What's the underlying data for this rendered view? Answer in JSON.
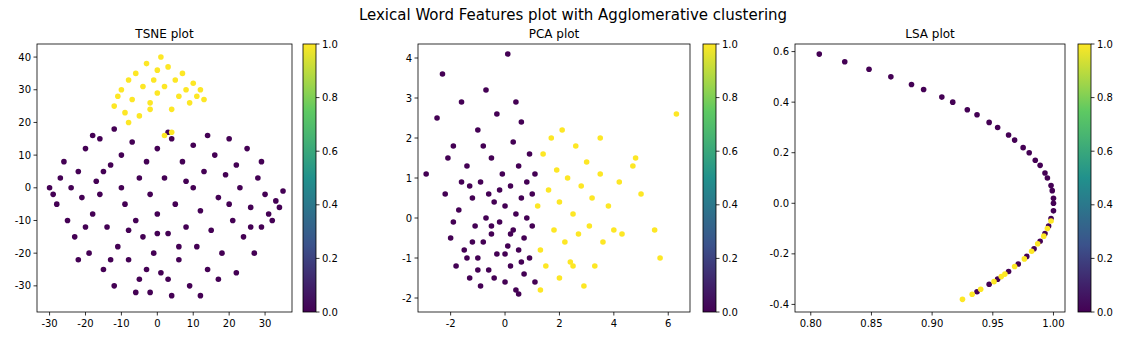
{
  "title": "Lexical Word Features plot with Agglomerative clustering",
  "chart_data": [
    {
      "type": "scatter",
      "title": "TSNE plot",
      "x": [
        -30,
        -28,
        -27,
        -25,
        -26,
        -23,
        -22,
        -21,
        -20,
        -19,
        -18,
        -17,
        -16,
        -15,
        -14,
        -13,
        -12,
        -11,
        -10,
        -10,
        -9,
        -8,
        -7,
        -6,
        -5,
        -5,
        -4,
        -3,
        -2,
        -2,
        -1,
        0,
        0,
        1,
        2,
        3,
        4,
        4,
        5,
        6,
        7,
        8,
        9,
        10,
        10,
        11,
        12,
        13,
        14,
        15,
        16,
        17,
        18,
        19,
        20,
        21,
        22,
        22,
        23,
        24,
        25,
        26,
        27,
        28,
        29,
        30,
        31,
        33,
        34,
        35,
        -29,
        -24,
        -20,
        -15,
        -8,
        -3,
        3,
        8,
        12,
        17,
        20,
        26,
        -12,
        -18,
        6,
        0,
        -6,
        14,
        29,
        32,
        -22,
        -13,
        -16,
        3,
        -12,
        -11,
        -10,
        -9,
        -8,
        -7,
        -6,
        -5,
        -4,
        -3,
        -2,
        -1,
        0,
        0,
        1,
        2,
        3,
        4,
        5,
        6,
        7,
        8,
        9,
        10,
        11,
        12,
        13,
        -8,
        -2,
        2,
        4
      ],
      "values": [
        0,
        -5,
        3,
        -10,
        8,
        -15,
        5,
        -3,
        12,
        -20,
        -8,
        2,
        15,
        -25,
        -12,
        7,
        -30,
        -18,
        0,
        10,
        -5,
        -22,
        14,
        -10,
        -28,
        3,
        -15,
        8,
        -32,
        -2,
        -20,
        12,
        -8,
        -26,
        3,
        -14,
        -33,
        15,
        -5,
        -22,
        8,
        -12,
        -30,
        0,
        13,
        -18,
        -7,
        5,
        -25,
        -13,
        10,
        -3,
        -20,
        4,
        15,
        -10,
        -26,
        7,
        0,
        -15,
        12,
        -6,
        -20,
        3,
        -12,
        -2,
        -8,
        -4,
        -6,
        -1,
        -2,
        0,
        -12,
        5,
        -13,
        -25,
        -28,
        2,
        -33,
        -28,
        -5,
        -12,
        18,
        16,
        -18,
        -14,
        -32,
        16,
        8,
        -10,
        -22,
        -22,
        -2,
        17,
        25,
        28,
        30,
        23,
        33,
        27,
        35,
        22,
        31,
        38,
        26,
        33,
        36,
        29,
        40,
        31,
        37,
        24,
        33,
        28,
        35,
        30,
        26,
        32,
        28,
        30,
        27,
        20,
        24,
        16,
        17
      ],
      "cluster": [
        0,
        0,
        0,
        0,
        0,
        0,
        0,
        0,
        0,
        0,
        0,
        0,
        0,
        0,
        0,
        0,
        0,
        0,
        0,
        0,
        0,
        0,
        0,
        0,
        0,
        0,
        0,
        0,
        0,
        0,
        0,
        0,
        0,
        0,
        0,
        0,
        0,
        0,
        0,
        0,
        0,
        0,
        0,
        0,
        0,
        0,
        0,
        0,
        0,
        0,
        0,
        0,
        0,
        0,
        0,
        0,
        0,
        0,
        0,
        0,
        0,
        0,
        0,
        0,
        0,
        0,
        0,
        0,
        0,
        0,
        0,
        0,
        0,
        0,
        0,
        0,
        0,
        0,
        0,
        0,
        0,
        0,
        0,
        0,
        0,
        0,
        0,
        0,
        0,
        0,
        0,
        0,
        0,
        0,
        1,
        1,
        1,
        1,
        1,
        1,
        1,
        1,
        1,
        1,
        1,
        1,
        1,
        1,
        1,
        1,
        1,
        1,
        1,
        1,
        1,
        1,
        1,
        1,
        1,
        1,
        1,
        1,
        1,
        1,
        1
      ],
      "xlim": [
        -33.5,
        37.5
      ],
      "ylim": [
        -38,
        44
      ],
      "xticks": [
        -30,
        -20,
        -10,
        0,
        10,
        20,
        30
      ],
      "yticks": [
        -30,
        -20,
        -10,
        0,
        10,
        20,
        30,
        40
      ],
      "colorbar": {
        "range": [
          0,
          1
        ],
        "ticks": [
          {
            "value": 0,
            "label": "0.0"
          },
          0.2,
          0.4,
          0.6,
          0.8,
          {
            "value": 1,
            "label": "1.0"
          }
        ]
      }
    },
    {
      "type": "scatter",
      "title": "PCA plot",
      "x": [
        -2.9,
        -2.5,
        -2.3,
        -2.2,
        -2.0,
        -1.9,
        -1.8,
        -1.7,
        -1.6,
        -1.5,
        -1.4,
        -1.3,
        -1.2,
        -1.1,
        -1.0,
        -1.0,
        -0.9,
        -0.8,
        -0.7,
        -0.7,
        -0.6,
        -0.5,
        -0.5,
        -0.4,
        -0.3,
        -0.3,
        -0.2,
        -0.1,
        0.0,
        0.0,
        0.1,
        0.1,
        0.2,
        0.2,
        0.3,
        0.3,
        0.4,
        0.4,
        0.5,
        0.5,
        0.6,
        0.6,
        0.7,
        0.7,
        0.8,
        0.8,
        0.9,
        0.9,
        1.0,
        1.0,
        1.1,
        1.1,
        -1.9,
        -1.3,
        -0.9,
        -0.4,
        0.2,
        -0.6,
        -1.2,
        -0.2,
        0.5,
        -2.1,
        -1.6,
        -0.8,
        0.4,
        -1.0,
        0.0,
        -0.5,
        0.6,
        -1.4,
        1.2,
        1.3,
        1.4,
        1.5,
        1.6,
        1.7,
        1.8,
        1.9,
        2.0,
        2.0,
        2.1,
        2.2,
        2.3,
        2.4,
        2.5,
        2.6,
        2.7,
        2.8,
        2.9,
        3.0,
        3.1,
        3.2,
        3.3,
        3.5,
        3.6,
        3.8,
        4.0,
        4.2,
        4.3,
        4.7,
        4.8,
        5.0,
        5.5,
        5.7,
        6.3,
        1.3,
        2.5,
        3.5
      ],
      "values": [
        1.1,
        2.5,
        3.6,
        0.6,
        -0.5,
        1.8,
        -1.2,
        0.2,
        2.9,
        -0.8,
        1.3,
        -1.5,
        0.5,
        -0.2,
        2.2,
        -1.0,
        0.9,
        -0.6,
        3.2,
        0.0,
        -1.3,
        1.5,
        -0.4,
        0.4,
        -0.9,
        2.6,
        -0.1,
        1.1,
        -1.6,
        0.3,
        4.1,
        -0.7,
        0.8,
        -1.2,
        1.9,
        -0.3,
        0.1,
        -1.8,
        1.3,
        -0.8,
        0.5,
        2.4,
        -0.5,
        -1.4,
        0.9,
        0.0,
        -1.0,
        1.6,
        -0.2,
        0.6,
        -1.6,
        1.1,
        -0.1,
        0.8,
        -1.7,
        -1.5,
        -0.4,
        0.6,
        -0.6,
        0.7,
        -1.9,
        1.5,
        0.9,
        1.8,
        2.9,
        -1.3,
        -0.9,
        -0.2,
        -1.1,
        -1.0,
        0.3,
        -0.8,
        1.6,
        -1.2,
        0.7,
        2.0,
        -0.3,
        1.2,
        -1.5,
        0.4,
        2.2,
        -0.6,
        1.0,
        -1.1,
        0.1,
        1.8,
        -0.4,
        0.8,
        -1.7,
        1.4,
        -0.2,
        0.5,
        -1.2,
        1.1,
        -0.6,
        0.3,
        -0.3,
        0.9,
        -0.4,
        1.3,
        1.5,
        0.6,
        -0.3,
        -1.0,
        2.6,
        -1.8,
        -1.2,
        2.0
      ],
      "cluster": [
        0,
        0,
        0,
        0,
        0,
        0,
        0,
        0,
        0,
        0,
        0,
        0,
        0,
        0,
        0,
        0,
        0,
        0,
        0,
        0,
        0,
        0,
        0,
        0,
        0,
        0,
        0,
        0,
        0,
        0,
        0,
        0,
        0,
        0,
        0,
        0,
        0,
        0,
        0,
        0,
        0,
        0,
        0,
        0,
        0,
        0,
        0,
        0,
        0,
        0,
        0,
        0,
        0,
        0,
        0,
        0,
        0,
        0,
        0,
        0,
        0,
        0,
        0,
        0,
        0,
        0,
        0,
        0,
        0,
        0,
        1,
        1,
        1,
        1,
        1,
        1,
        1,
        1,
        1,
        1,
        1,
        1,
        1,
        1,
        1,
        1,
        1,
        1,
        1,
        1,
        1,
        1,
        1,
        1,
        1,
        1,
        1,
        1,
        1,
        1,
        1,
        1,
        1,
        1,
        1,
        1,
        1,
        1
      ],
      "xlim": [
        -3.2,
        6.8
      ],
      "ylim": [
        -2.35,
        4.35
      ],
      "xticks": [
        -2,
        0,
        2,
        4,
        6
      ],
      "yticks": [
        -2,
        -1,
        0,
        1,
        2,
        3,
        4
      ],
      "colorbar": {
        "range": [
          0,
          1
        ],
        "ticks": [
          {
            "value": 0,
            "label": "0.0"
          },
          0.2,
          0.4,
          0.6,
          0.8,
          {
            "value": 1,
            "label": "1.0"
          }
        ]
      }
    },
    {
      "type": "scatter",
      "title": "LSA plot",
      "x": [
        0.807,
        0.828,
        0.848,
        0.866,
        0.883,
        0.893,
        0.908,
        0.917,
        0.929,
        0.937,
        0.947,
        0.954,
        0.963,
        0.968,
        0.975,
        0.98,
        0.985,
        0.989,
        0.993,
        0.995,
        0.998,
        0.999,
        1.0,
        1.0,
        1.0,
        0.998,
        0.996,
        0.993,
        0.989,
        0.984,
        0.978,
        0.971,
        0.963,
        0.954,
        0.947,
        0.937,
        0.998,
        0.995,
        0.992,
        0.987,
        0.982,
        0.976,
        0.968,
        0.96,
        0.951,
        0.94,
        0.933,
        0.925,
        0.957
      ],
      "values": [
        0.59,
        0.56,
        0.53,
        0.5,
        0.47,
        0.45,
        0.42,
        0.4,
        0.37,
        0.35,
        0.32,
        0.3,
        0.27,
        0.25,
        0.22,
        0.2,
        0.17,
        0.15,
        0.12,
        0.1,
        0.07,
        0.05,
        0.02,
        0.0,
        -0.03,
        -0.06,
        -0.09,
        -0.12,
        -0.15,
        -0.18,
        -0.21,
        -0.24,
        -0.27,
        -0.3,
        -0.32,
        -0.35,
        -0.07,
        -0.1,
        -0.13,
        -0.16,
        -0.19,
        -0.22,
        -0.25,
        -0.28,
        -0.31,
        -0.34,
        -0.36,
        -0.38,
        -0.29
      ],
      "cluster": [
        0,
        0,
        0,
        0,
        0,
        0,
        0,
        0,
        0,
        0,
        0,
        0,
        0,
        0,
        0,
        0,
        0,
        0,
        0,
        0,
        0,
        0,
        0,
        0,
        0,
        0,
        0,
        0,
        0,
        0,
        0,
        0,
        0,
        0,
        0,
        0,
        1,
        1,
        1,
        1,
        1,
        1,
        1,
        1,
        1,
        1,
        1,
        1,
        1
      ],
      "xlim": [
        0.787,
        1.0095
      ],
      "ylim": [
        -0.43,
        0.63
      ],
      "xticks": [
        {
          "value": 0.8,
          "label": "0.80"
        },
        0.85,
        {
          "value": 0.9,
          "label": "0.90"
        },
        0.95,
        {
          "value": 1,
          "label": "1.00"
        }
      ],
      "yticks": [
        -0.4,
        -0.2,
        {
          "value": 0,
          "label": "0.0"
        },
        0.2,
        0.4,
        0.6
      ],
      "colorbar": {
        "range": [
          0,
          1
        ],
        "ticks": [
          {
            "value": 0,
            "label": "0.0"
          },
          0.2,
          0.4,
          0.6,
          0.8,
          {
            "value": 1,
            "label": "1.0"
          }
        ]
      }
    }
  ]
}
